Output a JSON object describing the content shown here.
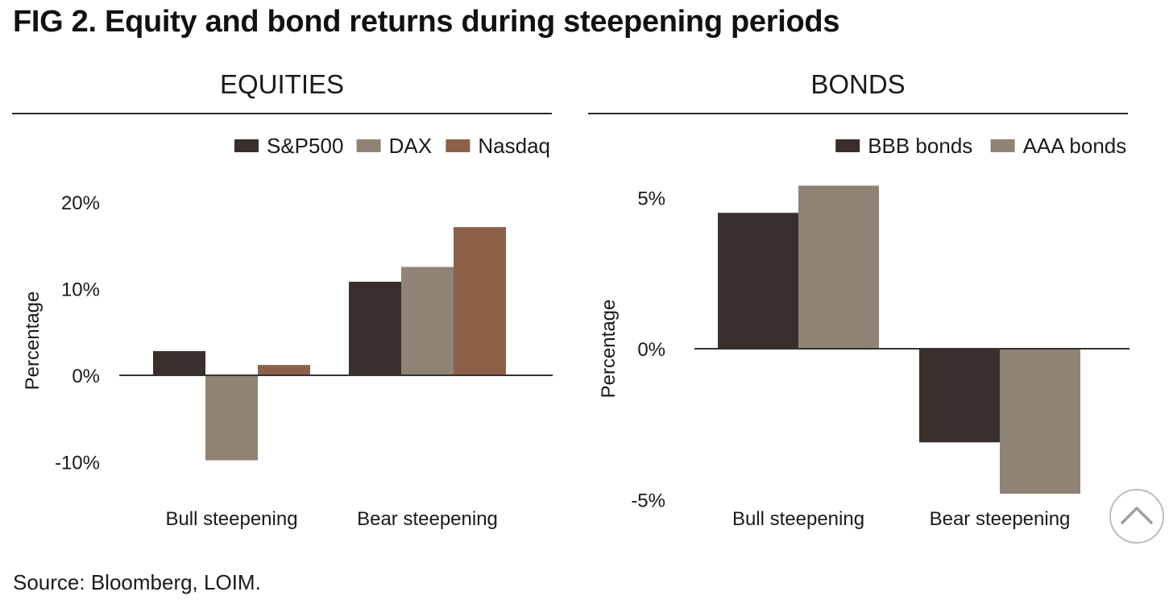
{
  "title": "FIG 2. Equity and bond returns during steepening periods",
  "source": "Source: Bloomberg, LOIM.",
  "chart_data": [
    {
      "type": "bar",
      "panel_title": "EQUITIES",
      "categories": [
        "Bull steepening",
        "Bear steepening"
      ],
      "series": [
        {
          "name": "S&P500",
          "color": "#392f2d",
          "values": [
            2.8,
            10.8
          ]
        },
        {
          "name": "DAX",
          "color": "#8f8376",
          "values": [
            -9.8,
            12.5
          ]
        },
        {
          "name": "Nasdaq",
          "color": "#8c6049",
          "values": [
            1.2,
            17.1
          ]
        }
      ],
      "ylabel": "Percentage",
      "ylim": [
        -13,
        21
      ],
      "yticks": [
        20,
        10,
        0,
        -10
      ],
      "ytick_labels": [
        "20%",
        "10%",
        "0%",
        "-10%"
      ],
      "grid": false,
      "legend": "top-right"
    },
    {
      "type": "bar",
      "panel_title": "BONDS",
      "categories": [
        "Bull steepening",
        "Bear steepening"
      ],
      "series": [
        {
          "name": "BBB bonds",
          "color": "#392f2d",
          "values": [
            4.5,
            -3.1
          ]
        },
        {
          "name": "AAA bonds",
          "color": "#8f8376",
          "values": [
            5.4,
            -4.8
          ]
        }
      ],
      "ylabel": "Percentage",
      "ylim": [
        -6,
        6
      ],
      "yticks": [
        5,
        0,
        -5
      ],
      "ytick_labels": [
        "5%",
        "0%",
        "-5%"
      ],
      "grid": false,
      "legend": "top-right"
    }
  ],
  "scroll_top": {
    "icon": "chevron-up-icon"
  }
}
